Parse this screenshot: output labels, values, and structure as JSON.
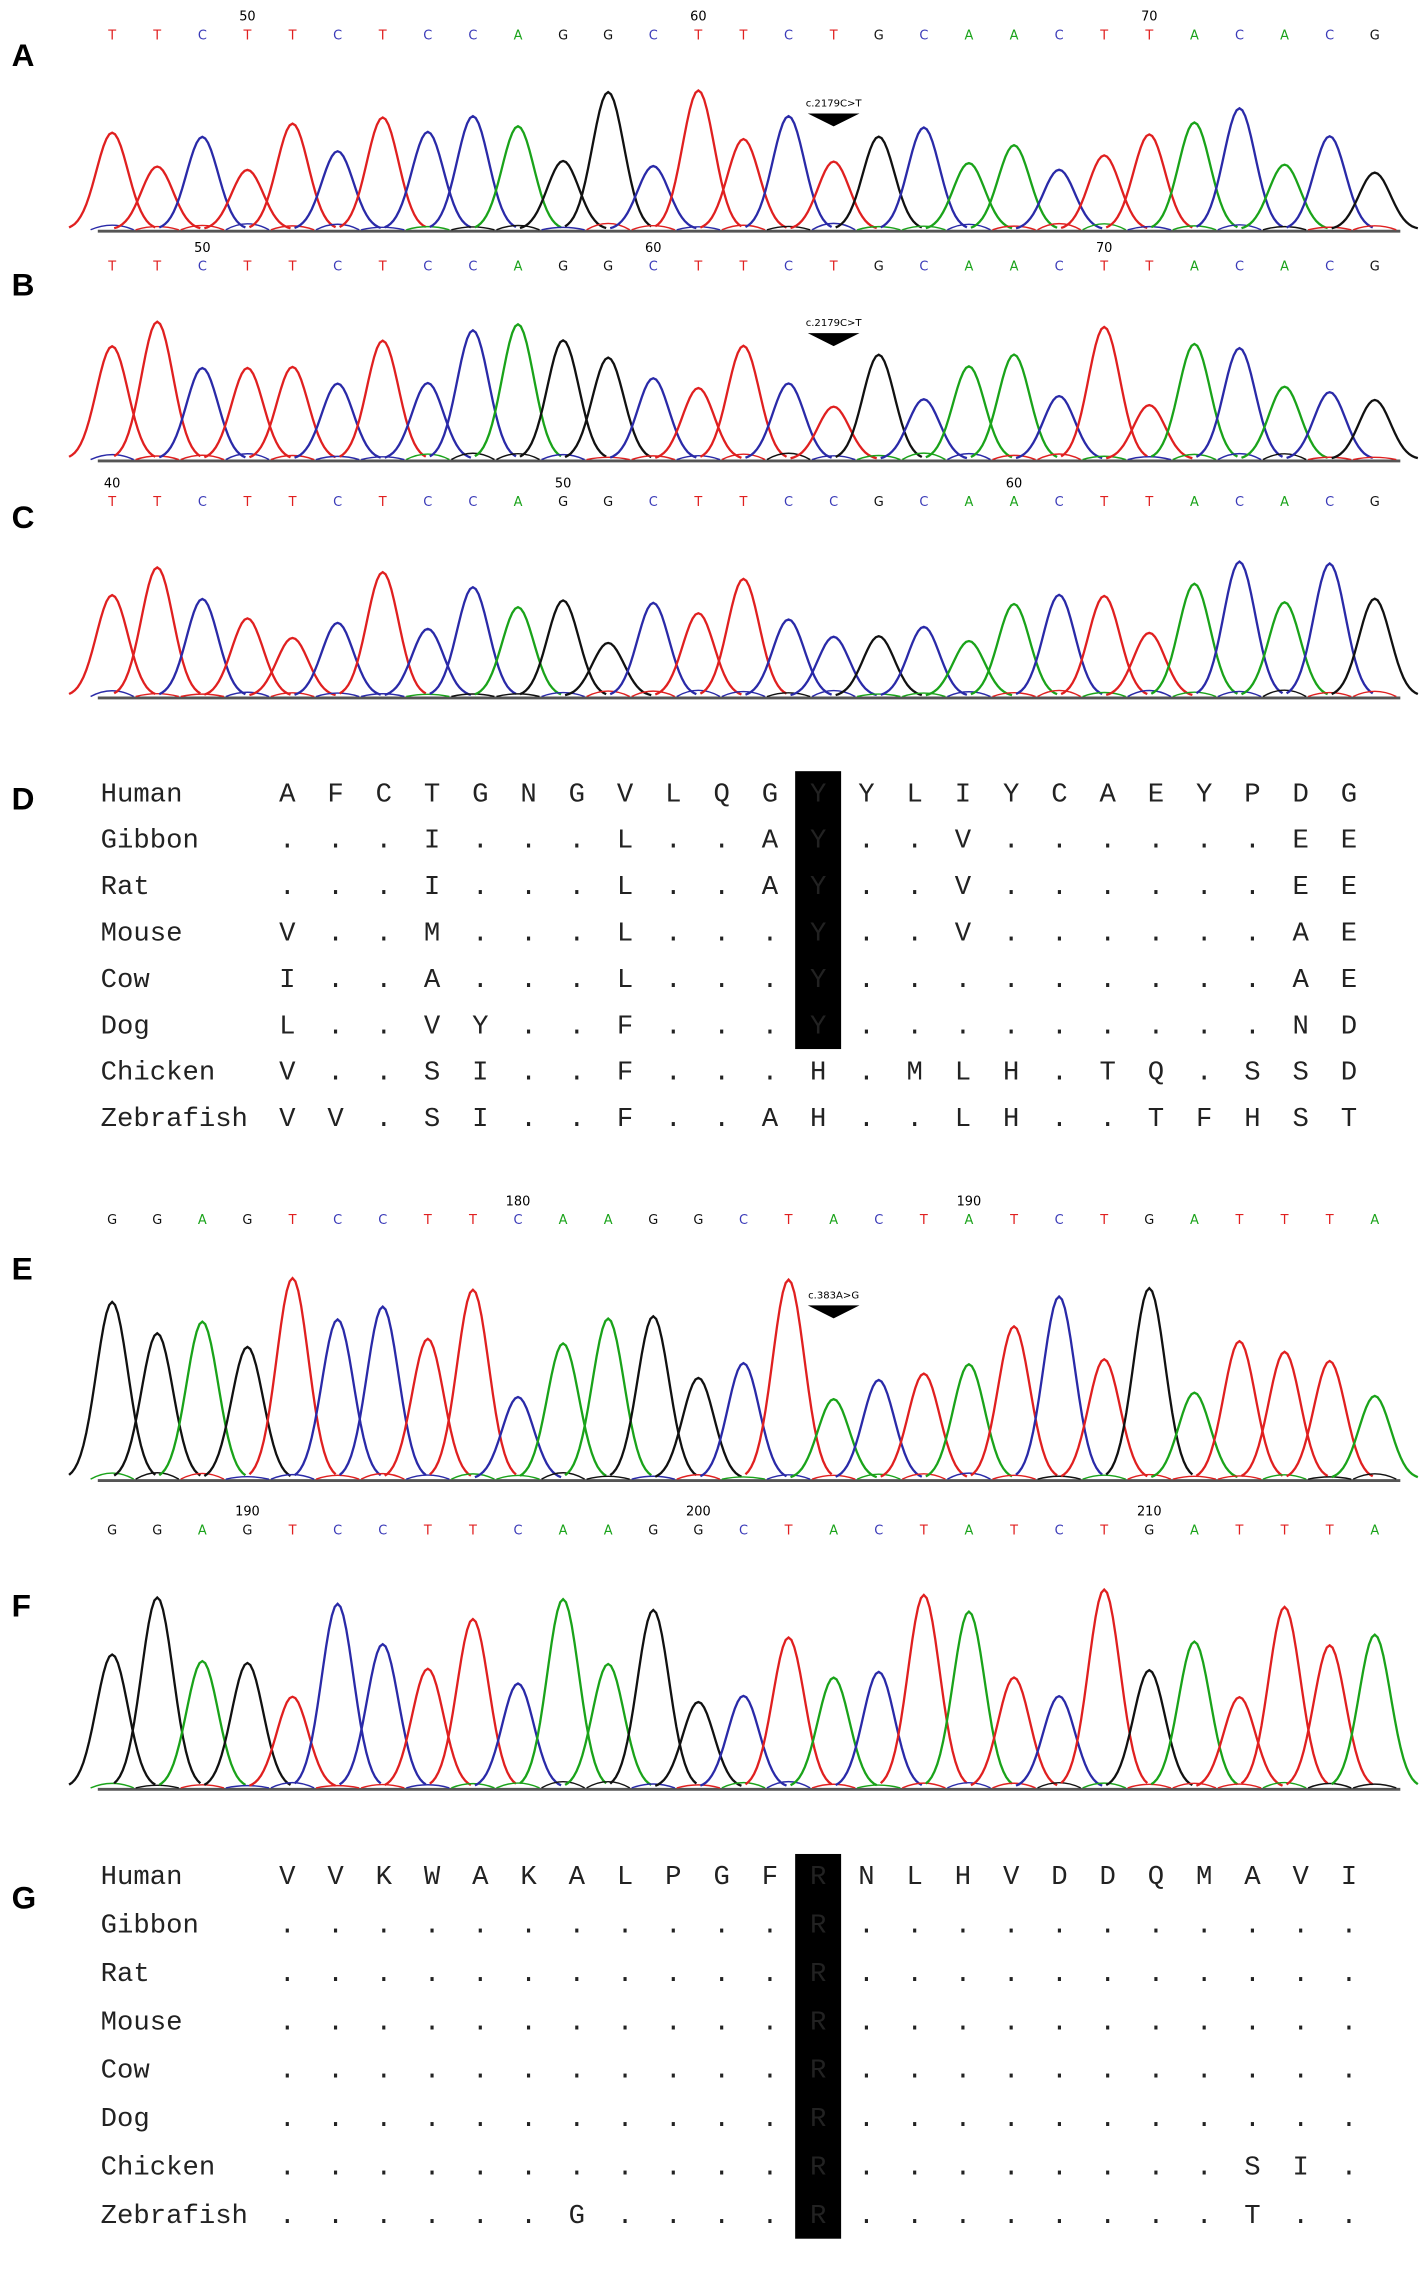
{
  "traces": [
    {
      "label": "A",
      "bases": [
        "T",
        "T",
        "C",
        "T",
        "T",
        "C",
        "T",
        "C",
        "C",
        "A",
        "G",
        "G",
        "C",
        "T",
        "T",
        "C",
        "T",
        "G",
        "C",
        "A",
        "A",
        "C",
        "T",
        "T",
        "A",
        "C",
        "A",
        "C",
        "G"
      ],
      "numbers": [
        "50",
        "60",
        "70"
      ],
      "annotation": "c.2179C>T"
    },
    {
      "label": "B",
      "bases": [
        "T",
        "T",
        "C",
        "T",
        "T",
        "C",
        "T",
        "C",
        "C",
        "A",
        "G",
        "G",
        "C",
        "T",
        "T",
        "C",
        "T",
        "G",
        "C",
        "A",
        "A",
        "C",
        "T",
        "T",
        "A",
        "C",
        "A",
        "C",
        "G"
      ],
      "numbers": [
        "50",
        "60",
        "70"
      ],
      "annotation": "c.2179C>T"
    },
    {
      "label": "C",
      "bases": [
        "T",
        "T",
        "C",
        "T",
        "T",
        "C",
        "T",
        "C",
        "C",
        "A",
        "G",
        "G",
        "C",
        "T",
        "T",
        "C",
        "C",
        "G",
        "C",
        "A",
        "A",
        "C",
        "T",
        "T",
        "A",
        "C",
        "A",
        "C",
        "G"
      ],
      "numbers": [
        "40",
        "50",
        "60"
      ]
    },
    {
      "label": "E",
      "bases": [
        "G",
        "G",
        "A",
        "G",
        "T",
        "C",
        "C",
        "T",
        "T",
        "C",
        "A",
        "A",
        "G",
        "G",
        "C",
        "T",
        "A",
        "C",
        "T",
        "A",
        "T",
        "C",
        "T",
        "G",
        "A",
        "T",
        "T",
        "T",
        "A"
      ],
      "numbers": [
        "180",
        "190"
      ],
      "annotation": "c.383A>G"
    },
    {
      "label": "F",
      "bases": [
        "G",
        "G",
        "A",
        "G",
        "T",
        "C",
        "C",
        "T",
        "T",
        "C",
        "A",
        "A",
        "G",
        "G",
        "C",
        "T",
        "A",
        "C",
        "T",
        "A",
        "T",
        "C",
        "T",
        "G",
        "A",
        "T",
        "T",
        "T",
        "A"
      ],
      "numbers": [
        "190",
        "200",
        "210"
      ]
    }
  ],
  "alignments": [
    {
      "label": "D",
      "rows": [
        {
          "name": "Human",
          "residues": [
            "A",
            "F",
            "C",
            "T",
            "G",
            "N",
            "G",
            "V",
            "L",
            "Q",
            "G",
            "Y",
            "Y",
            "L",
            "I",
            "Y",
            "C",
            "A",
            "E",
            "Y",
            "P",
            "D",
            "G"
          ]
        },
        {
          "name": "Gibbon",
          "residues": [
            ".",
            ".",
            ".",
            "I",
            ".",
            ".",
            ".",
            "L",
            ".",
            ".",
            "A",
            "Y",
            ".",
            ".",
            "V",
            ".",
            ".",
            ".",
            ".",
            ".",
            ".",
            "E",
            "E"
          ]
        },
        {
          "name": "Rat",
          "residues": [
            ".",
            ".",
            ".",
            "I",
            ".",
            ".",
            ".",
            "L",
            ".",
            ".",
            "A",
            "Y",
            ".",
            ".",
            "V",
            ".",
            ".",
            ".",
            ".",
            ".",
            ".",
            "E",
            "E"
          ]
        },
        {
          "name": "Mouse",
          "residues": [
            "V",
            ".",
            ".",
            "M",
            ".",
            ".",
            ".",
            "L",
            ".",
            ".",
            ".",
            "Y",
            ".",
            ".",
            "V",
            ".",
            ".",
            ".",
            ".",
            ".",
            ".",
            "A",
            "E"
          ]
        },
        {
          "name": "Cow",
          "residues": [
            "I",
            ".",
            ".",
            "A",
            ".",
            ".",
            ".",
            "L",
            ".",
            ".",
            ".",
            "Y",
            ".",
            ".",
            ".",
            ".",
            ".",
            ".",
            ".",
            ".",
            ".",
            "A",
            "E"
          ]
        },
        {
          "name": "Dog",
          "residues": [
            "L",
            ".",
            ".",
            "V",
            "Y",
            ".",
            ".",
            "F",
            ".",
            ".",
            ".",
            "Y",
            ".",
            ".",
            ".",
            ".",
            ".",
            ".",
            ".",
            ".",
            ".",
            "N",
            "D"
          ]
        },
        {
          "name": "Chicken",
          "residues": [
            "V",
            ".",
            ".",
            "S",
            "I",
            ".",
            ".",
            "F",
            ".",
            ".",
            ".",
            "H",
            ".",
            "M",
            "L",
            "H",
            ".",
            "T",
            "Q",
            ".",
            "S",
            "S",
            "D"
          ]
        },
        {
          "name": "Zebrafish",
          "residues": [
            "V",
            "V",
            ".",
            "S",
            "I",
            ".",
            ".",
            "F",
            ".",
            ".",
            "A",
            "H",
            ".",
            ".",
            "L",
            "H",
            ".",
            ".",
            "T",
            "F",
            "H",
            "S",
            "T"
          ]
        }
      ]
    },
    {
      "label": "G",
      "rows": [
        {
          "name": "Human",
          "residues": [
            "V",
            "V",
            "K",
            "W",
            "A",
            "K",
            "A",
            "L",
            "P",
            "G",
            "F",
            "R",
            "N",
            "L",
            "H",
            "V",
            "D",
            "D",
            "Q",
            "M",
            "A",
            "V",
            "I"
          ]
        },
        {
          "name": "Gibbon",
          "residues": [
            ".",
            ".",
            ".",
            ".",
            ".",
            ".",
            ".",
            ".",
            ".",
            ".",
            ".",
            "R",
            ".",
            ".",
            ".",
            ".",
            ".",
            ".",
            ".",
            ".",
            ".",
            ".",
            "."
          ]
        },
        {
          "name": "Rat",
          "residues": [
            ".",
            ".",
            ".",
            ".",
            ".",
            ".",
            ".",
            ".",
            ".",
            ".",
            ".",
            "R",
            ".",
            ".",
            ".",
            ".",
            ".",
            ".",
            ".",
            ".",
            ".",
            ".",
            "."
          ]
        },
        {
          "name": "Mouse",
          "residues": [
            ".",
            ".",
            ".",
            ".",
            ".",
            ".",
            ".",
            ".",
            ".",
            ".",
            ".",
            "R",
            ".",
            ".",
            ".",
            ".",
            ".",
            ".",
            ".",
            ".",
            ".",
            ".",
            "."
          ]
        },
        {
          "name": "Cow",
          "residues": [
            ".",
            ".",
            ".",
            ".",
            ".",
            ".",
            ".",
            ".",
            ".",
            ".",
            ".",
            "R",
            ".",
            ".",
            ".",
            ".",
            ".",
            ".",
            ".",
            ".",
            ".",
            ".",
            "."
          ]
        },
        {
          "name": "Dog",
          "residues": [
            ".",
            ".",
            ".",
            ".",
            ".",
            ".",
            ".",
            ".",
            ".",
            ".",
            ".",
            "R",
            ".",
            ".",
            ".",
            ".",
            ".",
            ".",
            ".",
            ".",
            ".",
            ".",
            "."
          ]
        },
        {
          "name": "Chicken",
          "residues": [
            ".",
            ".",
            ".",
            ".",
            ".",
            ".",
            ".",
            ".",
            ".",
            ".",
            ".",
            "R",
            ".",
            ".",
            ".",
            ".",
            ".",
            ".",
            ".",
            ".",
            "S",
            "I",
            "."
          ]
        },
        {
          "name": "Zebrafish",
          "residues": [
            ".",
            ".",
            ".",
            ".",
            ".",
            ".",
            "G",
            ".",
            ".",
            ".",
            ".",
            "R",
            ".",
            ".",
            ".",
            ".",
            ".",
            ".",
            ".",
            ".",
            "T",
            ".",
            "."
          ]
        }
      ]
    }
  ]
}
